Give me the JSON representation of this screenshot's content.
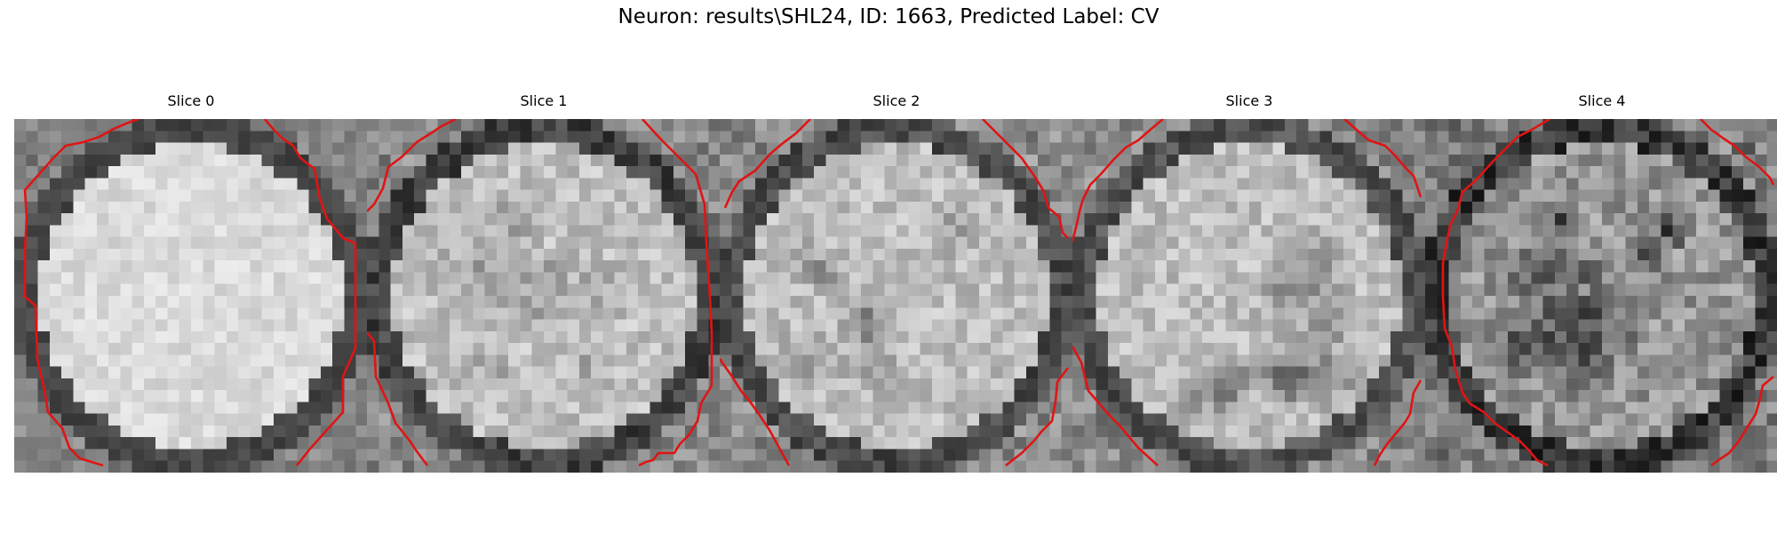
{
  "figure": {
    "title": "Neuron: results\\SHL24, ID: 1663, Predicted Label: CV"
  },
  "slices": [
    {
      "label": "Slice 0"
    },
    {
      "label": "Slice 1"
    },
    {
      "label": "Slice 2"
    },
    {
      "label": "Slice 3"
    },
    {
      "label": "Slice 4"
    }
  ],
  "colors": {
    "contour": "#e01414",
    "background": "#ffffff"
  }
}
